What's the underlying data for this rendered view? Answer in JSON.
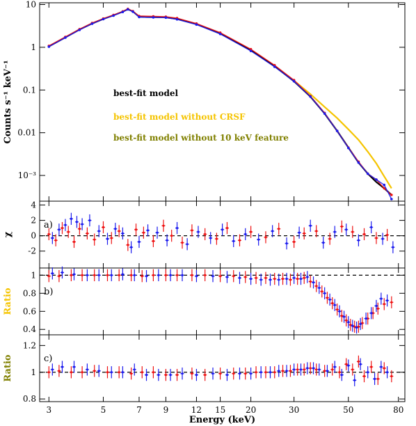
{
  "chart_data": [
    {
      "panel": "spectrum",
      "type": "line",
      "ylabel": "Counts s⁻¹ keV⁻¹",
      "xscale": "log",
      "yscale": "log",
      "xlim": [
        2.75,
        85
      ],
      "ylim": [
        0.00025,
        11
      ],
      "yticks": [
        {
          "v": 10,
          "t": "10"
        },
        {
          "v": 1,
          "t": "1"
        },
        {
          "v": 0.1,
          "t": "0.1"
        },
        {
          "v": 0.01,
          "t": "0.01"
        },
        {
          "v": 0.001,
          "t": "10⁻³"
        }
      ],
      "legend": [
        {
          "label": "best-fit model",
          "color": "#000000"
        },
        {
          "label": "best-fit model without CRSF",
          "color": "#f5c400"
        },
        {
          "label": "best-fit model without 10 keV feature",
          "color": "#808000"
        }
      ],
      "series": [
        {
          "name": "best-fit model",
          "color": "#000000",
          "x": [
            3,
            3.5,
            4,
            4.5,
            5,
            5.5,
            6,
            6.3,
            6.6,
            7,
            7.5,
            8,
            9,
            10,
            12,
            15,
            20,
            25,
            30,
            35,
            40,
            45,
            50,
            55,
            60,
            65,
            70,
            75
          ],
          "y": [
            1.05,
            1.7,
            2.6,
            3.6,
            4.6,
            5.6,
            6.8,
            7.8,
            6.9,
            5.2,
            5.1,
            5.1,
            5.0,
            4.6,
            3.5,
            2.1,
            0.85,
            0.36,
            0.16,
            0.07,
            0.028,
            0.011,
            0.0045,
            0.002,
            0.0011,
            0.0007,
            0.0005,
            0.00035
          ]
        },
        {
          "name": "best-fit model without CRSF",
          "color": "#f5c400",
          "x": [
            30,
            35,
            40,
            45,
            50,
            55,
            60,
            65,
            70,
            75
          ],
          "y": [
            0.165,
            0.08,
            0.04,
            0.022,
            0.012,
            0.0068,
            0.0036,
            0.0019,
            0.00095,
            0.0005
          ]
        },
        {
          "name": "data (red)",
          "color": "#ee1111",
          "x": [
            3,
            3.5,
            4,
            4.5,
            5,
            5.5,
            6,
            6.3,
            6.6,
            7,
            8,
            9,
            10,
            12,
            15,
            20,
            25,
            30,
            35,
            40,
            45,
            50,
            55,
            60,
            65,
            70,
            75
          ],
          "y": [
            1.08,
            1.75,
            2.65,
            3.7,
            4.7,
            5.7,
            6.9,
            7.9,
            7.0,
            5.4,
            5.3,
            5.2,
            4.8,
            3.6,
            2.2,
            0.9,
            0.38,
            0.17,
            0.072,
            0.029,
            0.011,
            0.0045,
            0.0021,
            0.0011,
            0.0008,
            0.0005,
            0.00035
          ]
        },
        {
          "name": "data (blue)",
          "color": "#1a1aee",
          "x": [
            3,
            3.5,
            4,
            4.5,
            5,
            5.5,
            6,
            6.3,
            6.6,
            7,
            8,
            9,
            10,
            12,
            15,
            20,
            25,
            30,
            35,
            40,
            45,
            50,
            55,
            60,
            65,
            70,
            75
          ],
          "y": [
            1.03,
            1.68,
            2.55,
            3.55,
            4.55,
            5.5,
            6.7,
            7.7,
            6.8,
            5.1,
            5.0,
            4.95,
            4.5,
            3.4,
            2.05,
            0.82,
            0.35,
            0.16,
            0.07,
            0.028,
            0.011,
            0.0044,
            0.002,
            0.0011,
            0.0008,
            0.0006,
            0.00028
          ]
        }
      ]
    },
    {
      "panel": "a",
      "label": "a)",
      "type": "scatter",
      "ylabel": "χ",
      "xscale": "log",
      "xlim": [
        2.75,
        85
      ],
      "ylim": [
        -4.2,
        4.5
      ],
      "yticks": [
        {
          "v": 4,
          "t": "4"
        },
        {
          "v": 2,
          "t": "2"
        },
        {
          "v": 0,
          "t": "0"
        },
        {
          "v": -2,
          "t": "-2"
        }
      ],
      "reference": 0,
      "series": [
        {
          "name": "red",
          "color": "#ee1111",
          "x": [
            3.0,
            3.2,
            3.4,
            3.6,
            3.8,
            4.0,
            4.3,
            4.6,
            5.0,
            5.4,
            5.8,
            6.3,
            6.8,
            7.3,
            8.0,
            8.8,
            9.5,
            10.5,
            11.5,
            13,
            14.5,
            16,
            18,
            20,
            23,
            26,
            30,
            33,
            37,
            42,
            47,
            52,
            58,
            65,
            72
          ],
          "y": [
            0.2,
            -0.6,
            1.0,
            0.5,
            -0.8,
            0.9,
            0.3,
            -0.5,
            1.1,
            -0.3,
            0.6,
            -1.2,
            0.8,
            0.4,
            -0.7,
            1.3,
            0.0,
            -0.9,
            0.7,
            0.2,
            -0.4,
            1.0,
            -0.6,
            0.5,
            -0.2,
            0.9,
            -0.8,
            0.3,
            0.6,
            -0.4,
            1.2,
            0.5,
            0.2,
            -0.3,
            0.1
          ]
        },
        {
          "name": "blue",
          "color": "#1a1aee",
          "x": [
            3.1,
            3.3,
            3.5,
            3.7,
            3.9,
            4.1,
            4.4,
            4.8,
            5.2,
            5.6,
            6.0,
            6.5,
            7.0,
            7.6,
            8.3,
            9.1,
            10,
            11,
            12.2,
            13.7,
            15.3,
            17,
            19,
            21.5,
            24.5,
            28,
            31.5,
            35,
            39.5,
            44,
            49,
            55,
            62,
            69,
            76
          ],
          "y": [
            -0.3,
            0.8,
            1.4,
            2.2,
            1.8,
            1.5,
            2.0,
            0.6,
            -0.4,
            0.9,
            0.3,
            -1.5,
            -0.8,
            0.7,
            0.4,
            -0.6,
            1.0,
            -1.1,
            0.5,
            -0.3,
            0.8,
            -0.7,
            0.2,
            -0.5,
            0.6,
            -1.0,
            0.4,
            1.3,
            -0.9,
            0.5,
            0.8,
            -0.6,
            1.1,
            -0.4,
            -1.5
          ]
        }
      ]
    },
    {
      "panel": "b",
      "label": "b)",
      "type": "scatter",
      "ylabel": "Ratio",
      "ylabel_color": "#f5c400",
      "xscale": "log",
      "xlim": [
        2.75,
        85
      ],
      "ylim": [
        0.34,
        1.08
      ],
      "yticks": [
        {
          "v": 1,
          "t": "1"
        },
        {
          "v": 0.8,
          "t": "0.8"
        },
        {
          "v": 0.6,
          "t": "0.6"
        },
        {
          "v": 0.4,
          "t": "0.4"
        }
      ],
      "reference": 1,
      "series": [
        {
          "name": "red",
          "color": "#ee1111",
          "x": [
            3.0,
            3.3,
            3.7,
            4.1,
            4.6,
            5.2,
            5.8,
            6.5,
            7.2,
            8.0,
            9.0,
            10,
            11.5,
            13,
            15,
            17,
            19,
            21,
            23,
            25,
            27,
            29,
            31,
            33,
            35,
            37,
            39,
            41,
            43,
            45,
            47,
            49,
            51,
            53,
            55,
            57,
            60,
            63,
            66,
            70,
            75
          ],
          "y": [
            0.99,
            0.99,
            1.0,
            1.0,
            1.0,
            1.0,
            1.0,
            1.0,
            0.99,
            1.0,
            1.0,
            1.0,
            1.0,
            1.0,
            0.99,
            0.99,
            0.98,
            0.97,
            0.97,
            0.96,
            0.96,
            0.95,
            0.96,
            0.97,
            0.93,
            0.88,
            0.82,
            0.75,
            0.69,
            0.62,
            0.55,
            0.5,
            0.45,
            0.43,
            0.43,
            0.47,
            0.52,
            0.58,
            0.63,
            0.68,
            0.7
          ]
        },
        {
          "name": "blue",
          "color": "#1a1aee",
          "x": [
            3.1,
            3.4,
            3.8,
            4.3,
            4.8,
            5.4,
            6.0,
            6.7,
            7.5,
            8.4,
            9.4,
            10.5,
            12,
            14,
            16,
            18,
            20,
            22,
            24,
            26,
            28,
            30,
            32,
            34,
            36,
            38,
            40,
            42,
            44,
            46,
            48,
            50,
            52,
            54,
            56,
            59,
            62,
            65,
            68,
            72
          ],
          "y": [
            1.02,
            1.03,
            1.01,
            1.0,
            1.0,
            1.0,
            1.01,
            1.0,
            0.99,
            1.0,
            1.0,
            1.0,
            0.99,
            0.99,
            0.98,
            0.97,
            0.96,
            0.95,
            0.95,
            0.95,
            0.96,
            0.97,
            0.96,
            0.98,
            0.92,
            0.86,
            0.8,
            0.73,
            0.67,
            0.6,
            0.54,
            0.48,
            0.44,
            0.42,
            0.46,
            0.52,
            0.58,
            0.66,
            0.74,
            0.72
          ]
        }
      ]
    },
    {
      "panel": "c",
      "label": "c)",
      "type": "scatter",
      "ylabel": "Ratio",
      "ylabel_color": "#808000",
      "xscale": "log",
      "xlim": [
        2.75,
        85
      ],
      "ylim": [
        0.78,
        1.28
      ],
      "yticks": [
        {
          "v": 1.2,
          "t": "1.2"
        },
        {
          "v": 1,
          "t": "1"
        },
        {
          "v": 0.8,
          "t": "0.8"
        }
      ],
      "reference": 1,
      "series": [
        {
          "name": "red",
          "color": "#ee1111",
          "x": [
            3.0,
            3.3,
            3.7,
            4.1,
            4.6,
            5.2,
            5.8,
            6.5,
            7.2,
            8.0,
            9.0,
            10,
            11.5,
            13,
            15,
            17,
            19,
            21,
            23,
            25,
            27,
            29,
            31,
            33,
            35,
            37,
            40,
            43,
            46,
            49,
            52,
            55,
            58,
            62,
            66,
            70,
            75
          ],
          "y": [
            1.0,
            1.01,
            1.0,
            1.0,
            1.01,
            1.0,
            1.0,
            0.99,
            1.0,
            1.0,
            0.98,
            0.98,
            0.99,
            0.98,
            0.99,
            0.99,
            0.99,
            1.0,
            1.0,
            1.0,
            1.01,
            1.01,
            1.02,
            1.02,
            1.03,
            1.02,
            1.01,
            1.02,
            1.0,
            1.06,
            1.02,
            1.08,
            0.97,
            1.04,
            0.95,
            1.03,
            0.97
          ]
        },
        {
          "name": "blue",
          "color": "#1a1aee",
          "x": [
            3.1,
            3.4,
            3.8,
            4.3,
            4.8,
            5.4,
            6.0,
            6.7,
            7.5,
            8.4,
            9.4,
            10.5,
            12,
            14,
            16,
            18,
            20,
            22,
            24,
            26,
            28,
            30,
            32,
            34,
            36,
            38,
            41,
            44,
            47,
            50,
            53,
            56,
            60,
            64,
            68,
            72
          ],
          "y": [
            1.02,
            1.04,
            1.04,
            1.02,
            1.01,
            1.0,
            1.0,
            1.02,
            0.98,
            0.98,
            0.98,
            0.99,
            0.98,
            0.99,
            0.98,
            0.99,
            0.99,
            1.0,
            1.0,
            1.01,
            1.01,
            1.02,
            1.02,
            1.03,
            1.03,
            1.02,
            1.01,
            1.04,
            0.98,
            1.05,
            0.94,
            1.06,
            1.0,
            0.95,
            1.04,
            1.0
          ]
        }
      ]
    }
  ],
  "x_axis": {
    "label": "Energy (keV)",
    "ticks": [
      {
        "v": 3,
        "t": "3"
      },
      {
        "v": 5,
        "t": "5"
      },
      {
        "v": 7,
        "t": "7"
      },
      {
        "v": 9,
        "t": "9"
      },
      {
        "v": 12,
        "t": "12"
      },
      {
        "v": 15,
        "t": "15"
      },
      {
        "v": 20,
        "t": "20"
      },
      {
        "v": 30,
        "t": "30"
      },
      {
        "v": 50,
        "t": "50"
      },
      {
        "v": 80,
        "t": "80"
      }
    ]
  }
}
